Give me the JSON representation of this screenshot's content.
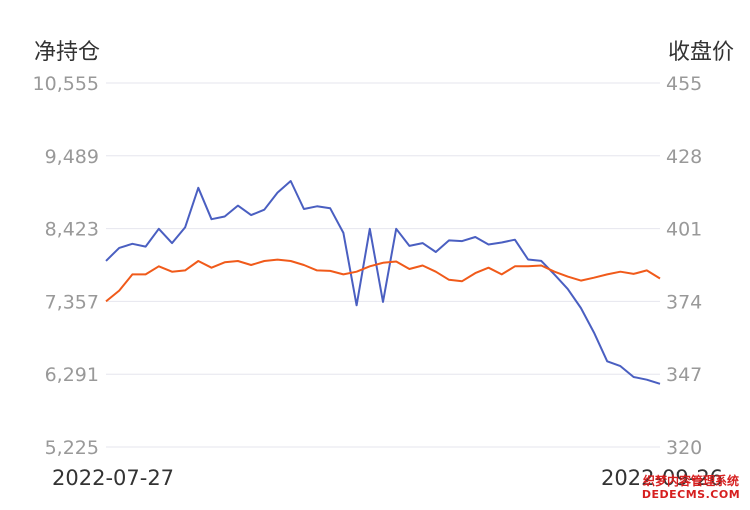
{
  "chart_data": {
    "type": "line",
    "left_axis_title": "净持仓",
    "right_axis_title": "收盘价",
    "x_start_label": "2022-07-27",
    "x_end_label": "2022-09-26",
    "left_ticks": [
      "10,555",
      "9,489",
      "8,423",
      "7,357",
      "6,291",
      "5,225"
    ],
    "right_ticks": [
      "455",
      "428",
      "401",
      "374",
      "347",
      "320"
    ],
    "left_ylim": [
      5225,
      10555
    ],
    "right_ylim": [
      320,
      455
    ],
    "grid": true,
    "colors": {
      "net_position": "#4a5fc1",
      "close_price": "#f05a1a",
      "grid": "#e6e6ee",
      "tick_text": "#999999"
    },
    "series": [
      {
        "axis": "left",
        "values": [
          7950,
          8140,
          8200,
          8160,
          8420,
          8210,
          8440,
          9020,
          8560,
          8600,
          8760,
          8620,
          8700,
          8950,
          9120,
          8710,
          8750,
          8720,
          8360,
          7300,
          8420,
          7350,
          8420,
          8170,
          8210,
          8080,
          8250,
          8240,
          8300,
          8190,
          8220,
          8260,
          7970,
          7950,
          7750,
          7540,
          7260,
          6900,
          6480,
          6410,
          6250,
          6210,
          6150
        ]
      },
      {
        "axis": "right",
        "values": [
          374,
          378,
          384,
          384,
          387,
          385,
          385.5,
          389,
          386.5,
          388.5,
          389,
          387.5,
          389,
          389.5,
          389,
          387.5,
          385.5,
          385.3,
          384,
          385,
          387,
          388.3,
          388.8,
          386,
          387.3,
          385,
          382,
          381.5,
          384.5,
          386.5,
          384,
          387,
          387,
          387.3,
          385,
          383.2,
          381.7,
          382.8,
          384,
          385,
          384.2,
          385.5,
          382.5
        ]
      }
    ]
  },
  "watermark": {
    "line1": "织梦内容管理系统",
    "line2": "DEDECMS.COM"
  }
}
